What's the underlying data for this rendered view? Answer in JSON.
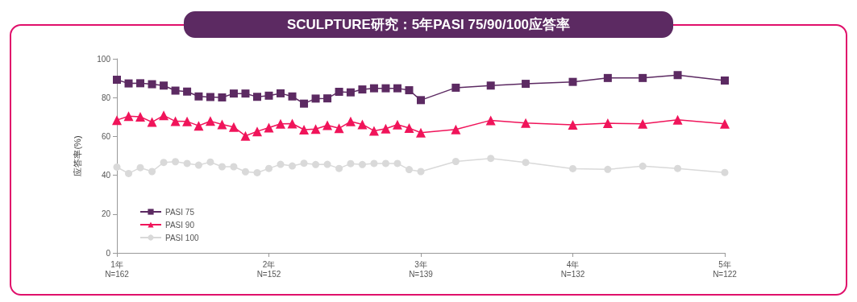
{
  "chart_data": {
    "type": "line",
    "title": "SCULPTURE研究：5年PASI 75/90/100应答率",
    "ylabel": "应答率(%)",
    "ylim": [
      0,
      100
    ],
    "yticks": [
      0,
      20,
      40,
      60,
      80,
      100
    ],
    "xlim": [
      1,
      5
    ],
    "xticks": [
      {
        "value": 1,
        "label": "1年"
      },
      {
        "value": 2,
        "label": "2年"
      },
      {
        "value": 3,
        "label": "3年"
      },
      {
        "value": 4,
        "label": "4年"
      },
      {
        "value": 5,
        "label": "5年"
      }
    ],
    "annotations": [
      "N=162",
      "N=152",
      "N=139",
      "N=132",
      "N=122"
    ],
    "x": [
      1,
      1.077,
      1.154,
      1.231,
      1.308,
      1.385,
      1.462,
      1.538,
      1.615,
      1.692,
      1.769,
      1.846,
      1.923,
      2,
      2.077,
      2.154,
      2.231,
      2.308,
      2.385,
      2.462,
      2.538,
      2.615,
      2.692,
      2.769,
      2.846,
      2.923,
      3,
      3.23,
      3.46,
      3.69,
      4,
      4.23,
      4.46,
      4.69,
      5
    ],
    "grid": false,
    "legend": "bottom left",
    "line_style": "solid",
    "series": [
      {
        "name": "PASI 75",
        "color": "#5c2a62",
        "marker": "square",
        "values": [
          89.2,
          87.3,
          87.4,
          86.9,
          86.2,
          83.6,
          83.1,
          80.6,
          80.3,
          80.1,
          82.1,
          82.1,
          80.4,
          81.0,
          82.2,
          80.6,
          76.9,
          79.5,
          79.6,
          83.0,
          82.7,
          84.2,
          84.8,
          84.8,
          84.8,
          83.8,
          78.7,
          85.1,
          86.2,
          87.1,
          88.1,
          90.1,
          90.1,
          91.6,
          88.8
        ]
      },
      {
        "name": "PASI 90",
        "color": "#f0145a",
        "marker": "triangle",
        "values": [
          68.4,
          70.4,
          70.1,
          67.4,
          70.8,
          67.8,
          67.7,
          65.5,
          67.9,
          66.2,
          64.8,
          60.3,
          62.6,
          64.5,
          66.5,
          66.6,
          63.5,
          63.8,
          65.8,
          64.2,
          67.7,
          66.2,
          62.9,
          64.0,
          66.1,
          64.3,
          61.9,
          63.6,
          68.3,
          66.9,
          66.0,
          66.8,
          66.5,
          68.6,
          66.5
        ]
      },
      {
        "name": "PASI 100",
        "color": "#d9d9d9",
        "marker": "circle",
        "values": [
          44.2,
          40.9,
          43.9,
          41.9,
          46.6,
          47.0,
          46.1,
          45.2,
          46.8,
          44.4,
          44.4,
          41.8,
          41.3,
          43.5,
          45.6,
          44.8,
          46.2,
          45.5,
          45.6,
          43.5,
          46.0,
          45.5,
          46.1,
          46.1,
          46.1,
          42.9,
          41.9,
          47.1,
          48.7,
          46.6,
          43.4,
          43.0,
          44.7,
          43.5,
          41.4
        ]
      }
    ]
  }
}
